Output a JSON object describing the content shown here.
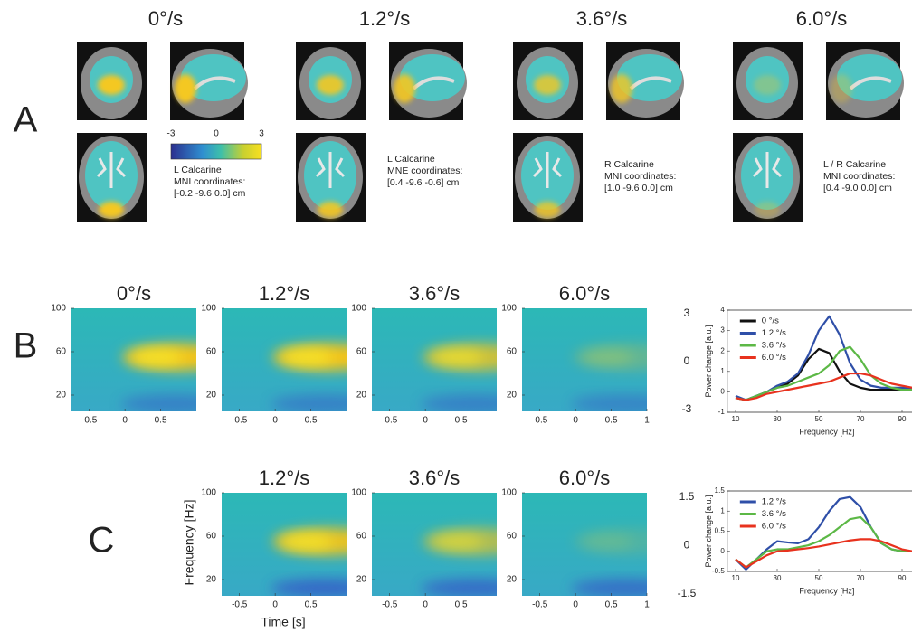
{
  "panel_a": {
    "label": "A",
    "colorbar_ticks": [
      -3,
      0,
      3
    ],
    "conditions": [
      {
        "title": "0°/s",
        "caption": [
          "L Calcarine",
          "MNI coordinates:",
          "[-0.2 -9.6 0.0] cm"
        ]
      },
      {
        "title": "1.2°/s",
        "caption": [
          "L Calcarine",
          "MNE coordinates:",
          "[0.4 -9.6 -0.6] cm"
        ]
      },
      {
        "title": "3.6°/s",
        "caption": [
          "R Calcarine",
          "MNI coordinates:",
          "[1.0 -9.6 0.0] cm"
        ]
      },
      {
        "title": "6.0°/s",
        "caption": [
          "L / R Calcarine",
          "MNI coordinates:",
          "[0.4 -9.0 0.0] cm"
        ]
      }
    ]
  },
  "panel_b": {
    "label": "B",
    "titles": [
      "0°/s",
      "1.2°/s",
      "3.6°/s",
      "6.0°/s"
    ],
    "time_lim": [
      -0.75,
      1
    ],
    "freq_lim": [
      5,
      100
    ],
    "freq_ticks": [
      100,
      60,
      20
    ],
    "time_ticks": [
      [
        -0.5,
        0,
        0.5
      ],
      [
        -0.5,
        0,
        0.5
      ],
      [
        -0.5,
        0,
        0.5
      ],
      [
        -0.5,
        0,
        0.5,
        1
      ]
    ],
    "scale_ticks": [
      3,
      0,
      -3
    ]
  },
  "panel_c": {
    "label": "C",
    "titles": [
      "1.2°/s",
      "3.6°/s",
      "6.0°/s"
    ],
    "ylabel": "Frequency [Hz]",
    "xlabel": "Time [s]",
    "time_lim": [
      -0.75,
      1
    ],
    "freq_lim": [
      5,
      100
    ],
    "freq_ticks": [
      100,
      60,
      20
    ],
    "time_ticks": [
      [
        -0.5,
        0,
        0.5
      ],
      [
        -0.5,
        0,
        0.5
      ],
      [
        -0.5,
        0,
        0.5,
        1
      ]
    ],
    "scale_ticks": [
      1.5,
      0,
      -1.5
    ]
  },
  "chart_data": [
    {
      "type": "line",
      "xlabel": "Frequency [Hz]",
      "ylabel": "Power change [a.u.]",
      "x": [
        10,
        15,
        20,
        25,
        30,
        35,
        40,
        45,
        50,
        55,
        60,
        65,
        70,
        75,
        80,
        85,
        90,
        95
      ],
      "xlim": [
        6,
        95
      ],
      "xticks": [
        10,
        30,
        50,
        70,
        90
      ],
      "ylim": [
        -1,
        4
      ],
      "yticks": [
        -1,
        0,
        1,
        2,
        3,
        4
      ],
      "legend": "top-left",
      "series": [
        {
          "name": "0 °/s",
          "color": "#111111",
          "values": [
            -0.3,
            -0.4,
            -0.2,
            0,
            0.2,
            0.4,
            0.8,
            1.6,
            2.1,
            1.9,
            1.0,
            0.4,
            0.2,
            0.1,
            0.1,
            0.1,
            0.1,
            0.1
          ]
        },
        {
          "name": "1.2 °/s",
          "color": "#2f4fa8",
          "values": [
            -0.2,
            -0.4,
            -0.2,
            0,
            0.3,
            0.5,
            0.9,
            1.8,
            3.0,
            3.7,
            2.8,
            1.4,
            0.6,
            0.3,
            0.2,
            0.2,
            0.2,
            0.2
          ]
        },
        {
          "name": "3.6 °/s",
          "color": "#5cb846",
          "values": [
            -0.3,
            -0.4,
            -0.2,
            0,
            0.2,
            0.3,
            0.5,
            0.7,
            0.9,
            1.3,
            2.0,
            2.2,
            1.6,
            0.8,
            0.4,
            0.2,
            0.1,
            0.1
          ]
        },
        {
          "name": "6.0 °/s",
          "color": "#e8321e",
          "values": [
            -0.3,
            -0.4,
            -0.3,
            -0.1,
            0,
            0.1,
            0.2,
            0.3,
            0.4,
            0.5,
            0.7,
            0.9,
            0.9,
            0.8,
            0.6,
            0.4,
            0.3,
            0.2
          ]
        }
      ]
    },
    {
      "type": "line",
      "xlabel": "Frequency [Hz]",
      "ylabel": "Power change [a.u.]",
      "x": [
        10,
        15,
        20,
        25,
        30,
        35,
        40,
        45,
        50,
        55,
        60,
        65,
        70,
        75,
        80,
        85,
        90,
        95
      ],
      "xlim": [
        6,
        95
      ],
      "xticks": [
        10,
        30,
        50,
        70,
        90
      ],
      "ylim": [
        -0.5,
        1.5
      ],
      "yticks": [
        -0.5,
        0,
        0.5,
        1,
        1.5
      ],
      "legend": "top-left",
      "series": [
        {
          "name": "1.2 °/s",
          "color": "#2f4fa8",
          "values": [
            -0.2,
            -0.45,
            -0.2,
            0.05,
            0.25,
            0.22,
            0.2,
            0.3,
            0.6,
            1.0,
            1.3,
            1.35,
            1.1,
            0.6,
            0.2,
            0.05,
            0,
            0
          ]
        },
        {
          "name": "3.6 °/s",
          "color": "#5cb846",
          "values": [
            -0.2,
            -0.4,
            -0.2,
            0,
            0.05,
            0.05,
            0.1,
            0.15,
            0.25,
            0.4,
            0.6,
            0.8,
            0.85,
            0.6,
            0.2,
            0.05,
            0,
            0
          ]
        },
        {
          "name": "6.0 °/s",
          "color": "#e8321e",
          "values": [
            -0.2,
            -0.4,
            -0.25,
            -0.1,
            0,
            0.02,
            0.05,
            0.08,
            0.12,
            0.17,
            0.22,
            0.27,
            0.3,
            0.3,
            0.25,
            0.15,
            0.05,
            0
          ]
        }
      ]
    }
  ]
}
